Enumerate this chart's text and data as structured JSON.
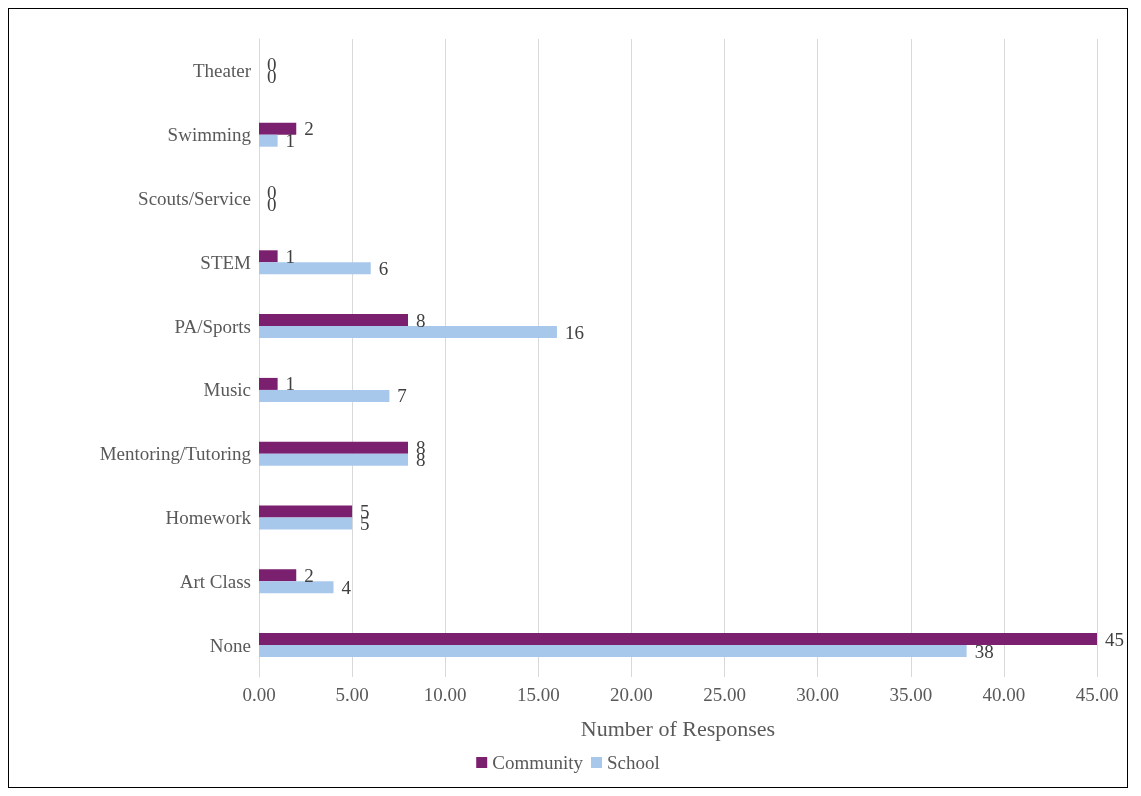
{
  "chart_data": {
    "type": "bar",
    "orientation": "horizontal",
    "xlabel": "Number of Responses",
    "categories": [
      "Theater",
      "Swimming",
      "Scouts/Service",
      "STEM",
      "PA/Sports",
      "Music",
      "Mentoring/Tutoring",
      "Homework",
      "Art Class",
      "None"
    ],
    "series": [
      {
        "name": "Community",
        "color": "#7b1f6f",
        "values": [
          0,
          2,
          0,
          1,
          8,
          1,
          8,
          5,
          2,
          45
        ]
      },
      {
        "name": "School",
        "color": "#a8c8eb",
        "values": [
          0,
          1,
          0,
          6,
          16,
          7,
          8,
          5,
          4,
          38
        ]
      }
    ],
    "xlim": [
      0,
      45
    ],
    "xticks": [
      {
        "value": 0,
        "label": "0.00"
      },
      {
        "value": 5,
        "label": "5.00"
      },
      {
        "value": 10,
        "label": "10.00"
      },
      {
        "value": 15,
        "label": "15.00"
      },
      {
        "value": 20,
        "label": "20.00"
      },
      {
        "value": 25,
        "label": "25.00"
      },
      {
        "value": 30,
        "label": "30.00"
      },
      {
        "value": 35,
        "label": "35.00"
      },
      {
        "value": 40,
        "label": "40.00"
      },
      {
        "value": 45,
        "label": "45.00"
      }
    ],
    "grid": "x",
    "legend": "bottom",
    "data_labels": true
  }
}
